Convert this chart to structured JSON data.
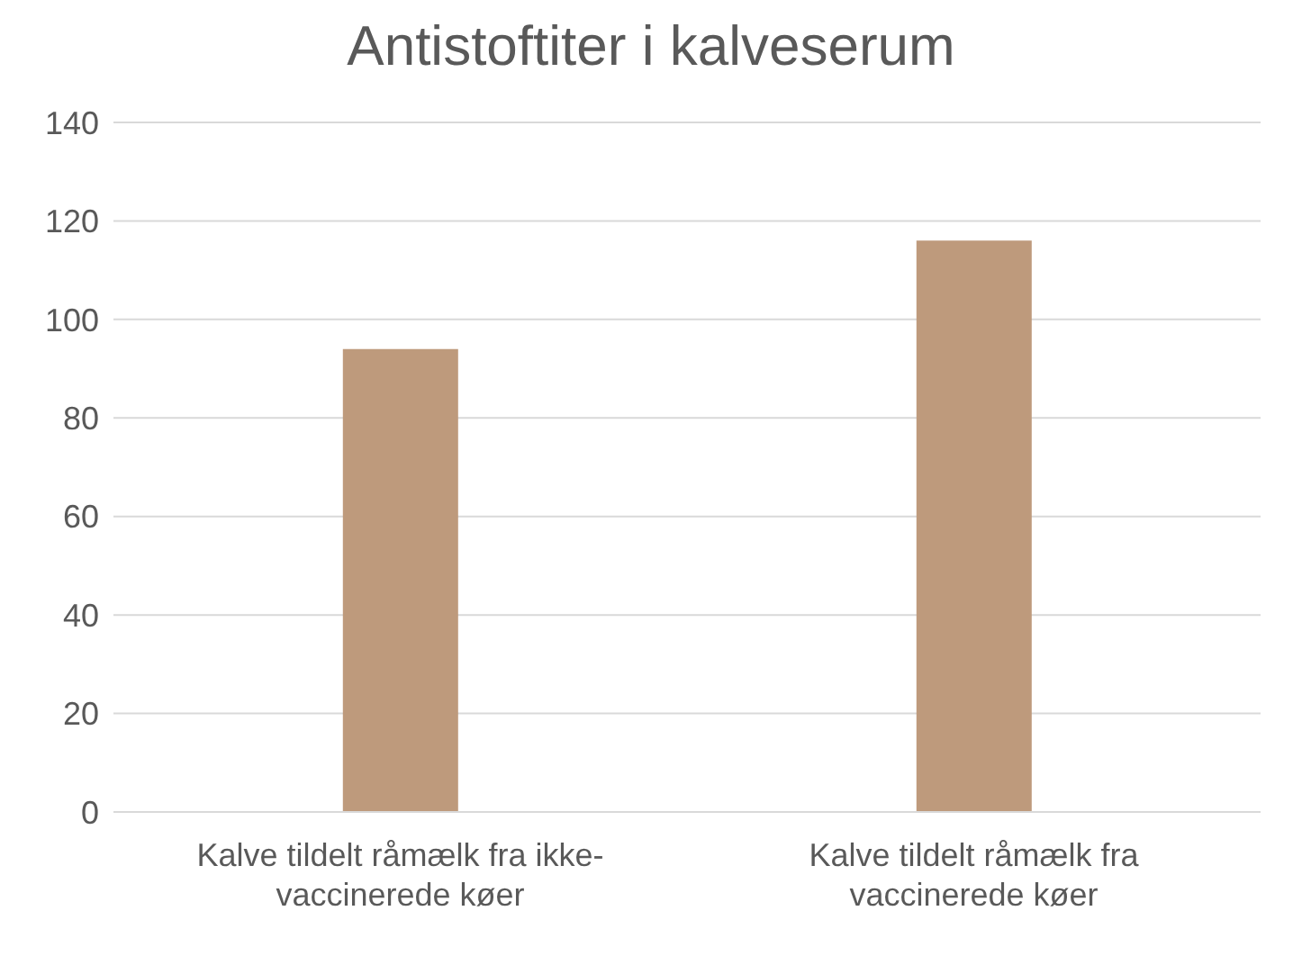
{
  "chart_data": {
    "type": "bar",
    "title": "Antistoftiter i kalveserum",
    "categories": [
      "Kalve tildelt råmælk fra ikke-vaccinerede køer",
      "Kalve tildelt råmælk fra vaccinerede køer"
    ],
    "values": [
      94,
      116
    ],
    "color": "#be9a7c",
    "ylim": [
      0,
      140
    ],
    "yticks": [
      0,
      20,
      40,
      60,
      80,
      100,
      120,
      140
    ],
    "grid": "y"
  }
}
